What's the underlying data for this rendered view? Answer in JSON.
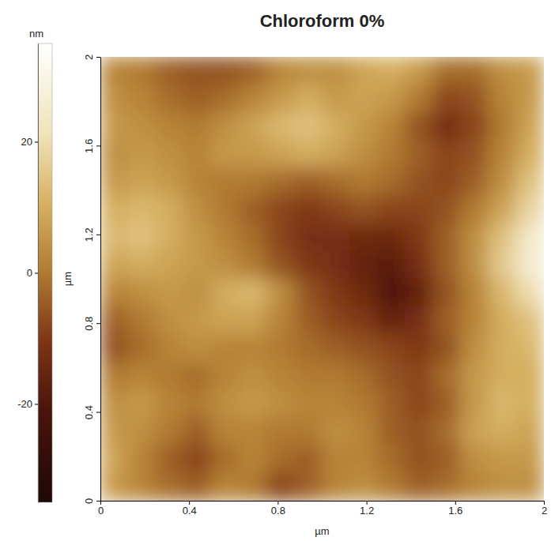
{
  "chart_data": {
    "type": "heatmap",
    "title": "Chloroform 0%",
    "x_label": "µm",
    "y_label": "µm",
    "xlim": [
      0,
      2
    ],
    "ylim": [
      0,
      2
    ],
    "xticks": [
      0,
      0.4,
      0.8,
      1.2,
      1.6,
      2
    ],
    "yticks": [
      0,
      0.4,
      0.8,
      1.2,
      1.6,
      2
    ],
    "x": [
      0.0625,
      0.1875,
      0.3125,
      0.4375,
      0.5625,
      0.6875,
      0.8125,
      0.9375,
      1.0625,
      1.1875,
      1.3125,
      1.4375,
      1.5625,
      1.6875,
      1.8125,
      1.9375
    ],
    "y": [
      1.9375,
      1.8125,
      1.6875,
      1.5625,
      1.4375,
      1.3125,
      1.1875,
      1.0625,
      0.9375,
      0.8125,
      0.6875,
      0.5625,
      0.4375,
      0.3125,
      0.1875,
      0.0625
    ],
    "z": [
      [
        2,
        0,
        -4,
        -6,
        -6,
        -4,
        2,
        4,
        4,
        8,
        10,
        6,
        -2,
        -2,
        4,
        6
      ],
      [
        4,
        2,
        -2,
        -4,
        -2,
        2,
        6,
        10,
        6,
        8,
        6,
        0,
        -8,
        -6,
        2,
        6
      ],
      [
        6,
        4,
        2,
        0,
        4,
        8,
        12,
        14,
        10,
        6,
        2,
        -6,
        -12,
        -8,
        0,
        8
      ],
      [
        4,
        6,
        4,
        2,
        6,
        6,
        8,
        10,
        8,
        4,
        0,
        -4,
        -8,
        -6,
        2,
        10
      ],
      [
        6,
        8,
        6,
        2,
        0,
        0,
        -2,
        -4,
        -2,
        0,
        -2,
        -6,
        -8,
        -4,
        4,
        14
      ],
      [
        10,
        12,
        10,
        4,
        0,
        -4,
        -8,
        -10,
        -8,
        -6,
        -8,
        -8,
        -6,
        0,
        8,
        18
      ],
      [
        12,
        14,
        10,
        6,
        2,
        -2,
        -8,
        -12,
        -12,
        -14,
        -14,
        -10,
        -4,
        4,
        14,
        24
      ],
      [
        8,
        10,
        8,
        6,
        4,
        0,
        -6,
        -10,
        -12,
        -16,
        -18,
        -12,
        -4,
        4,
        16,
        26
      ],
      [
        2,
        4,
        6,
        4,
        10,
        12,
        4,
        -6,
        -10,
        -14,
        -20,
        -16,
        -6,
        2,
        12,
        20
      ],
      [
        -4,
        0,
        4,
        6,
        8,
        8,
        2,
        -4,
        -8,
        -10,
        -16,
        -12,
        -4,
        2,
        10,
        14
      ],
      [
        -6,
        -2,
        2,
        4,
        2,
        2,
        0,
        -2,
        -4,
        -6,
        -8,
        -10,
        -6,
        4,
        10,
        12
      ],
      [
        0,
        2,
        0,
        -2,
        2,
        4,
        2,
        0,
        0,
        -2,
        -6,
        -8,
        -2,
        6,
        10,
        10
      ],
      [
        4,
        6,
        2,
        0,
        4,
        6,
        4,
        2,
        2,
        0,
        -4,
        -8,
        -4,
        6,
        12,
        10
      ],
      [
        6,
        4,
        0,
        -4,
        2,
        2,
        0,
        0,
        4,
        2,
        -4,
        -6,
        -2,
        8,
        10,
        8
      ],
      [
        8,
        2,
        -4,
        -8,
        -2,
        2,
        -2,
        -4,
        2,
        2,
        -2,
        -6,
        -4,
        4,
        6,
        6
      ],
      [
        6,
        2,
        -2,
        -4,
        2,
        0,
        -8,
        -4,
        2,
        4,
        0,
        -4,
        -2,
        2,
        4,
        4
      ]
    ],
    "colorbar": {
      "label": "nm",
      "range": [
        -35,
        35
      ],
      "ticks": [
        -20,
        0,
        20
      ]
    }
  }
}
